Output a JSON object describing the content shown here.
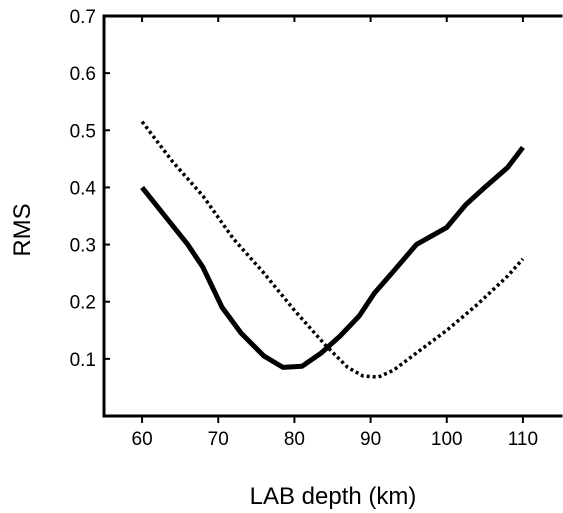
{
  "chart_data": {
    "type": "line",
    "title": "",
    "xlabel": "LAB depth (km)",
    "ylabel": "RMS",
    "xlim": [
      55,
      115
    ],
    "ylim": [
      0,
      0.7
    ],
    "x_ticks": [
      60,
      70,
      80,
      90,
      100,
      110
    ],
    "y_ticks": [
      0.1,
      0.2,
      0.3,
      0.4,
      0.5,
      0.6,
      0.7
    ],
    "grid": false,
    "legend": "none",
    "series": [
      {
        "style": "solid",
        "color": "#000000",
        "x": [
          60,
          63,
          66,
          68,
          70.5,
          73,
          76,
          78.5,
          81,
          83.5,
          86,
          88.5,
          90.5,
          93,
          96,
          100,
          102.5,
          105,
          108,
          110
        ],
        "y": [
          0.4,
          0.35,
          0.3,
          0.26,
          0.19,
          0.145,
          0.105,
          0.085,
          0.087,
          0.11,
          0.14,
          0.175,
          0.215,
          0.253,
          0.3,
          0.33,
          0.37,
          0.4,
          0.435,
          0.47
        ]
      },
      {
        "style": "dotted",
        "color": "#000000",
        "x": [
          60,
          64,
          68,
          72,
          76,
          80,
          84,
          87,
          89,
          91,
          93,
          96,
          100,
          104,
          108,
          110
        ],
        "y": [
          0.515,
          0.445,
          0.385,
          0.31,
          0.25,
          0.185,
          0.125,
          0.085,
          0.07,
          0.068,
          0.08,
          0.11,
          0.15,
          0.195,
          0.245,
          0.275
        ]
      }
    ]
  }
}
